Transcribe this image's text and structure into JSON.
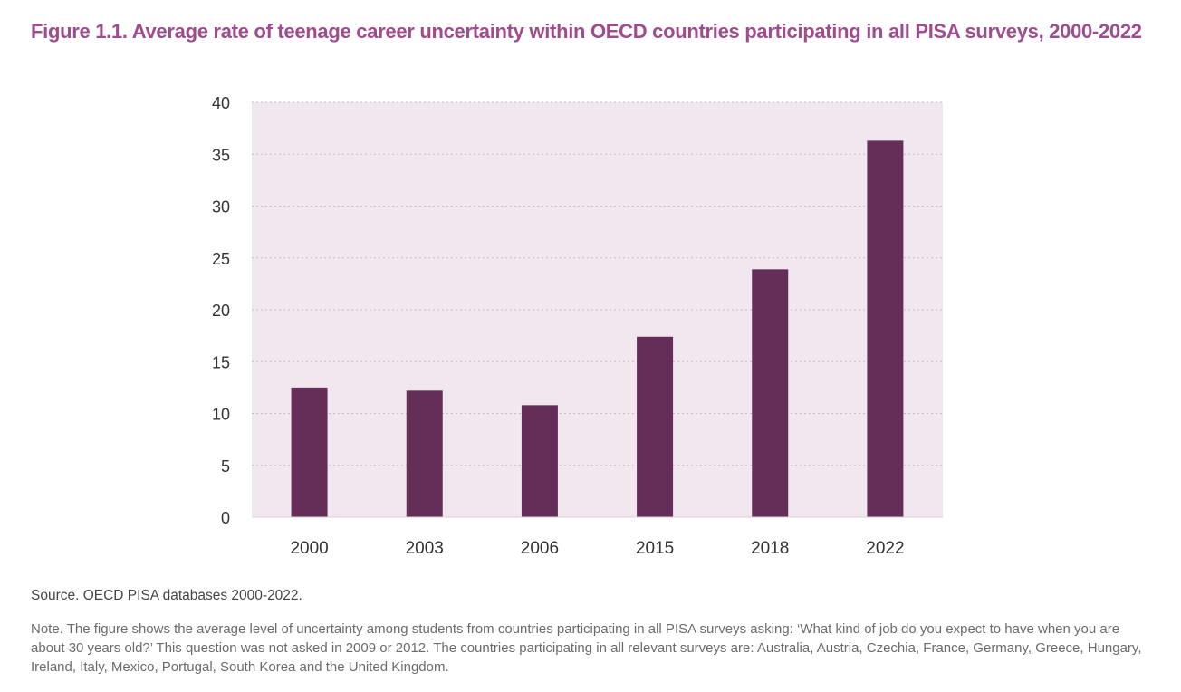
{
  "figure": {
    "title": "Figure 1.1.  Average rate of teenage career uncertainty within OECD countries participating in all PISA surveys, 2000-2022",
    "source": "Source. OECD PISA databases 2000-2022.",
    "note": "Note.  The figure shows the average level of uncertainty among students from countries participating in all PISA surveys asking: ‘What kind of job do you expect to have when you are about 30 years old?’  This question was not asked in 2009 or 2012.  The countries participating in all relevant surveys are: Australia, Austria, Czechia, France, Germany, Greece, Hungary, Ireland, Italy, Mexico, Portugal, South Korea and the United Kingdom."
  },
  "chart_data": {
    "type": "bar",
    "title": "Figure 1.1.  Average rate of teenage career uncertainty within OECD countries participating in all PISA surveys, 2000-2022",
    "categories": [
      "2000",
      "2003",
      "2006",
      "2015",
      "2018",
      "2022"
    ],
    "values": [
      12.5,
      12.2,
      10.8,
      17.4,
      23.9,
      36.3
    ],
    "xlabel": "",
    "ylabel": "",
    "ylim": [
      0,
      40
    ],
    "yticks": [
      0,
      5,
      10,
      15,
      20,
      25,
      30,
      35,
      40
    ],
    "grid": true,
    "legend": "none",
    "colors": {
      "bar": "#652e58",
      "plot_background": "#f0e8ee",
      "grid": "#c9b9c5",
      "title": "#a04b8f"
    }
  }
}
